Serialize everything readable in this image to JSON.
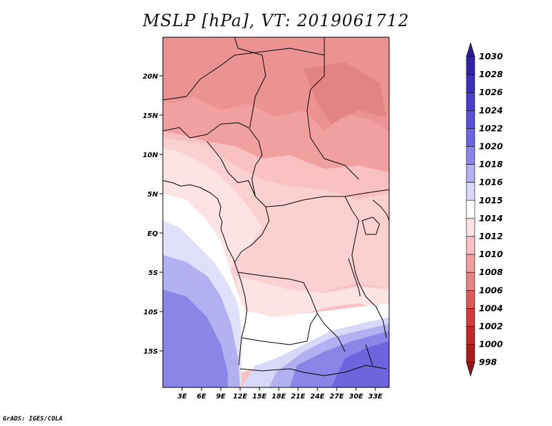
{
  "title": "MSLP [hPa], VT: 2019061712",
  "credit": "GrADS: IGES/COLA",
  "map": {
    "lat_ticks": [
      "20N",
      "15N",
      "10N",
      "5N",
      "EQ",
      "5S",
      "10S",
      "15S"
    ],
    "lon_ticks": [
      "3E",
      "6E",
      "9E",
      "12E",
      "15E",
      "18E",
      "21E",
      "24E",
      "27E",
      "30E",
      "33E"
    ]
  },
  "colorbar": {
    "levels": [
      "1030",
      "1028",
      "1026",
      "1024",
      "1022",
      "1020",
      "1018",
      "1016",
      "1015",
      "1014",
      "1012",
      "1010",
      "1008",
      "1006",
      "1004",
      "1002",
      "1000",
      "998"
    ],
    "colors": [
      "#2b1d8e",
      "#3324a6",
      "#3d30b8",
      "#4a3fc8",
      "#5a52d4",
      "#6c65de",
      "#8a86e8",
      "#b2b0f0",
      "#d8d8f8",
      "#ffffff",
      "#fde3e3",
      "#f9c1c1",
      "#f1a0a0",
      "#e58686",
      "#dc5a5a",
      "#d33c3c",
      "#c12a2a",
      "#a81e1e",
      "#8e1414"
    ]
  }
}
